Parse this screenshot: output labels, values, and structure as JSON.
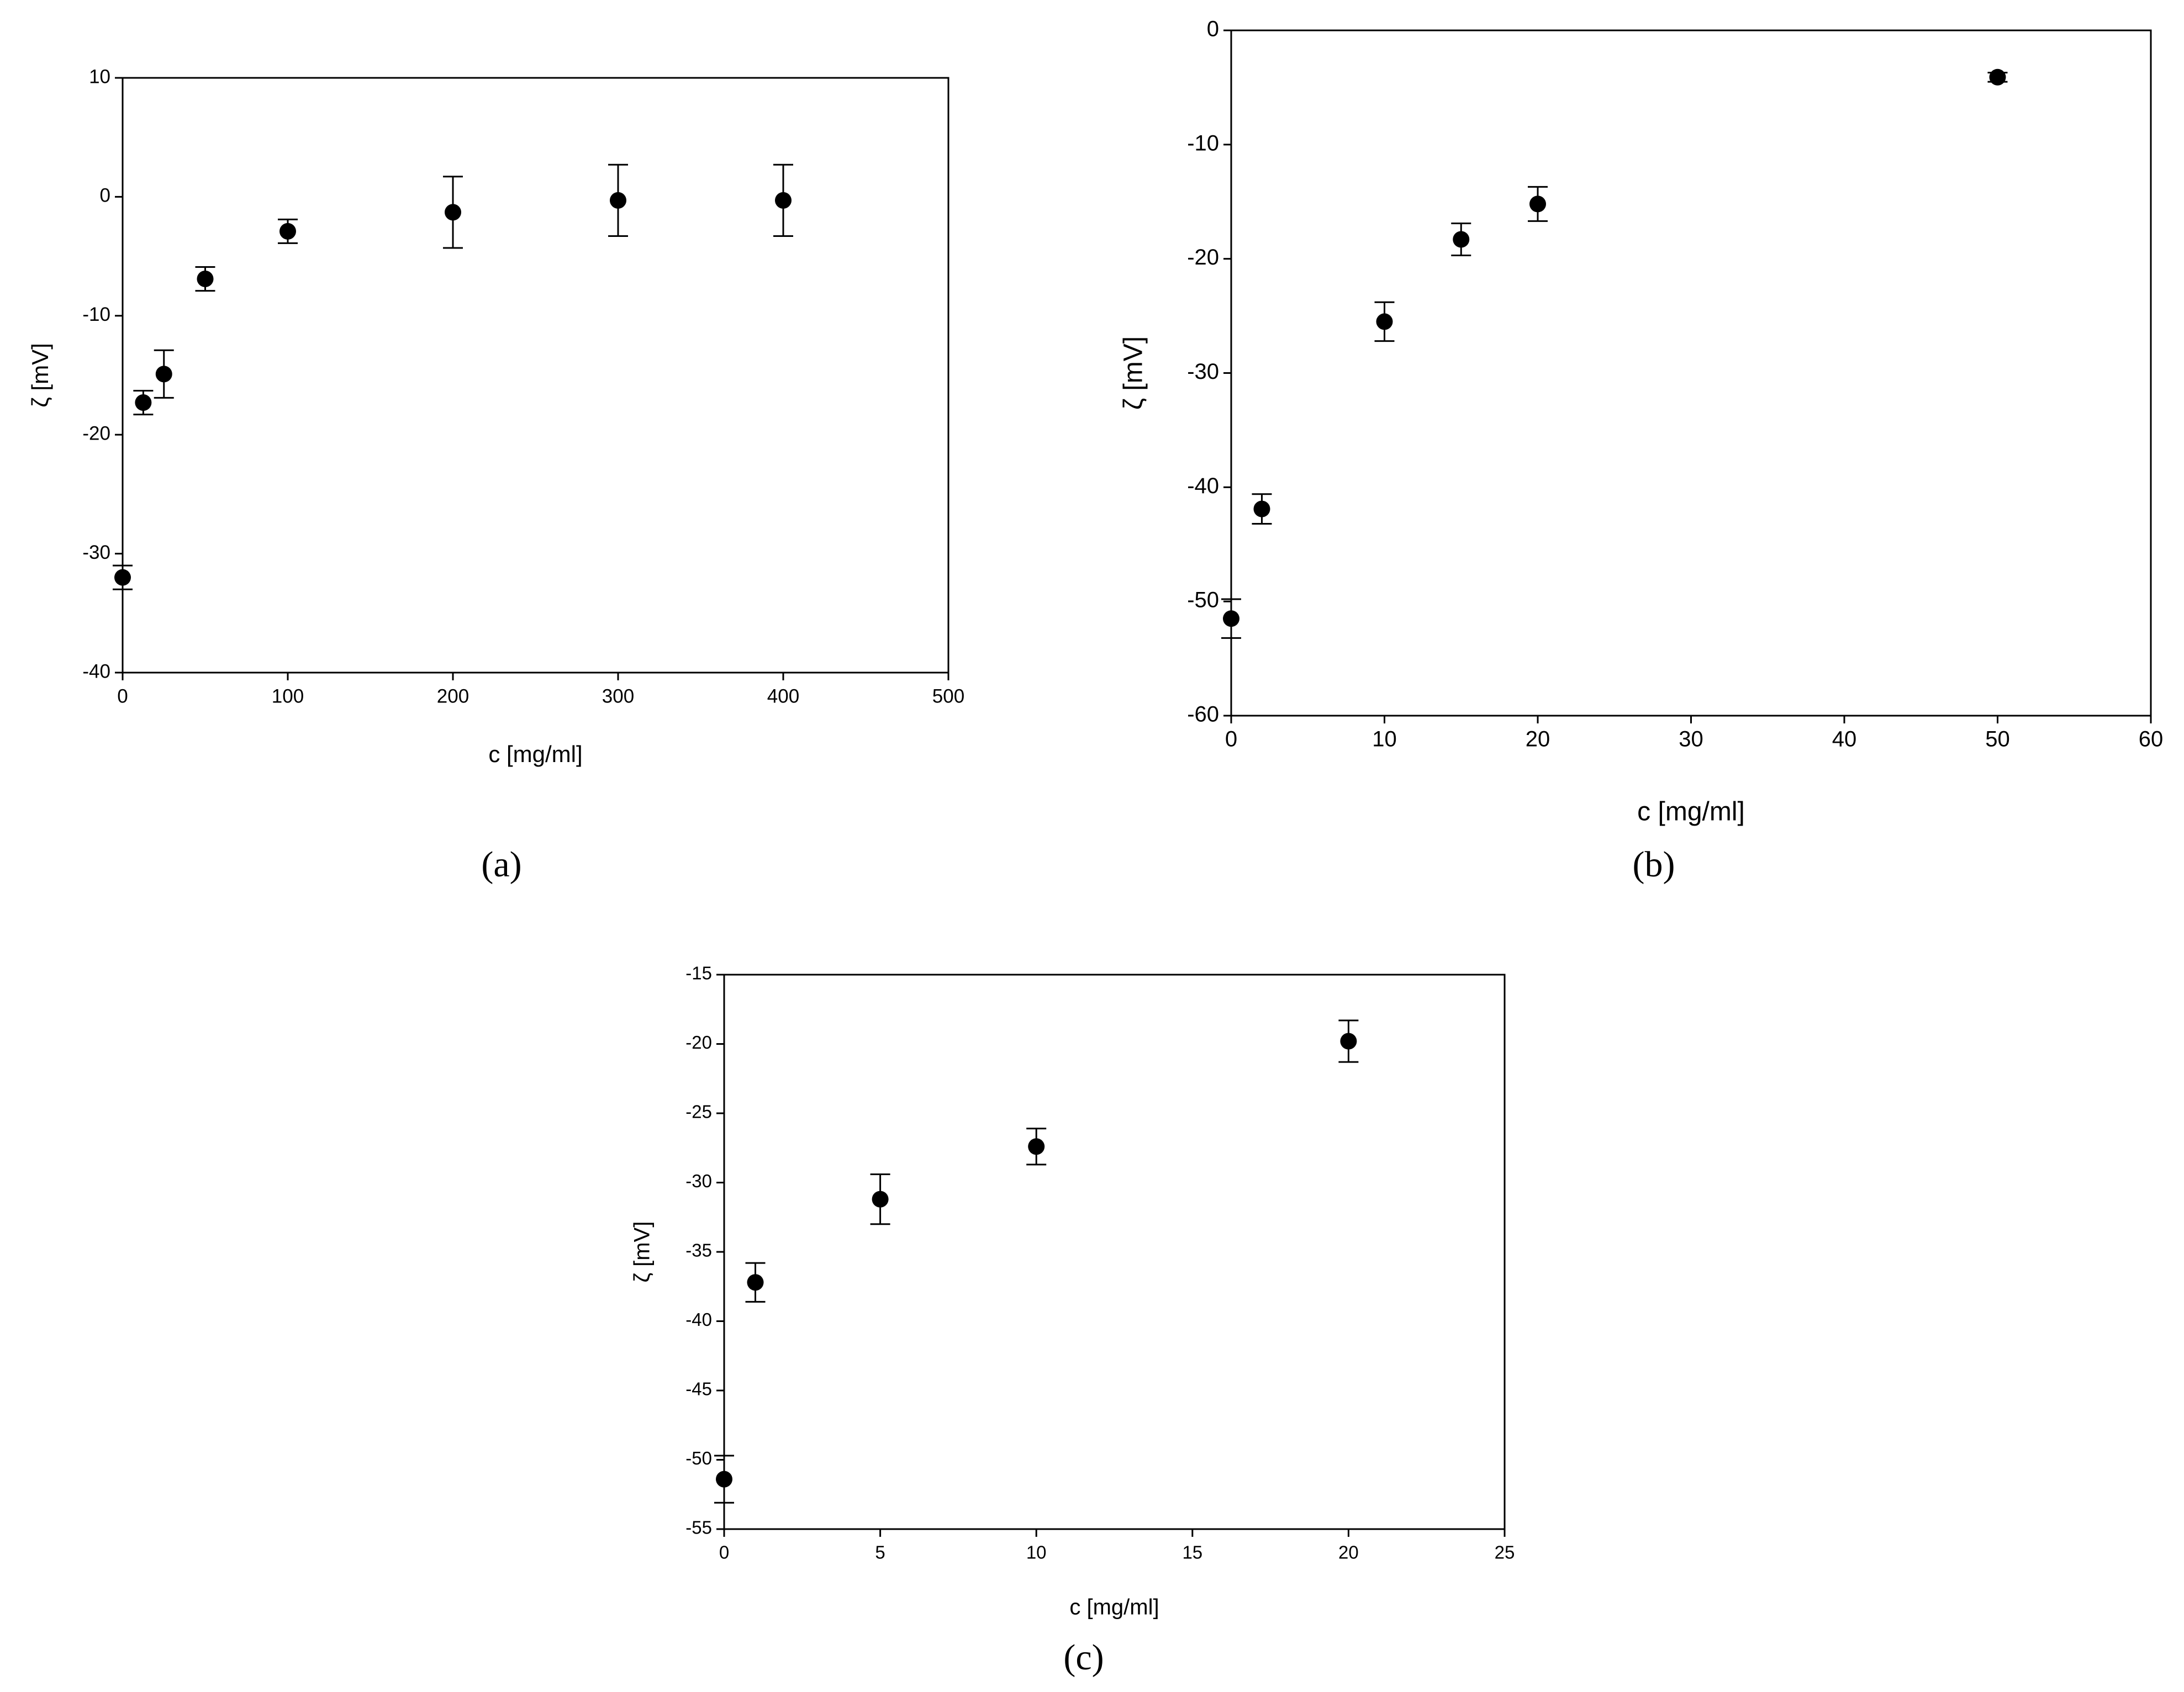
{
  "chart_data": [
    {
      "type": "scatter",
      "label": "(a)",
      "xlabel": "c [mg/ml]",
      "ylabel": "ζ [mV]",
      "x": [
        0,
        12.5,
        25,
        50,
        100,
        200,
        300,
        400
      ],
      "values": [
        -32,
        -17.3,
        -14.9,
        -6.9,
        -2.9,
        -1.3,
        -0.3,
        -0.3
      ],
      "errors": [
        1,
        1,
        2,
        1,
        1,
        3,
        3,
        3
      ],
      "color": "#000000",
      "xlim": [
        0,
        500
      ],
      "xticks": [
        0,
        100,
        200,
        300,
        400,
        500
      ],
      "ylim": [
        -40,
        10
      ],
      "yticks": [
        -40,
        -30,
        -20,
        -10,
        0,
        10
      ]
    },
    {
      "type": "scatter",
      "label": "(b)",
      "xlabel": "c [mg/ml]",
      "ylabel": "ζ [mV]",
      "x": [
        0,
        2,
        10,
        15,
        20,
        50
      ],
      "values": [
        -51.5,
        -41.9,
        -25.5,
        -18.3,
        -15.2,
        -4.1
      ],
      "errors": [
        1.7,
        1.3,
        1.7,
        1.4,
        1.5,
        0.4
      ],
      "color": "#000000",
      "xlim": [
        0,
        60
      ],
      "xticks": [
        0,
        10,
        20,
        30,
        40,
        50,
        60
      ],
      "ylim": [
        -60,
        0
      ],
      "yticks": [
        -60,
        -50,
        -40,
        -30,
        -20,
        -10,
        0
      ]
    },
    {
      "type": "scatter",
      "label": "(c)",
      "xlabel": "c [mg/ml]",
      "ylabel": "ζ [mV]",
      "x": [
        0,
        1,
        5,
        10,
        20
      ],
      "values": [
        -51.4,
        -37.2,
        -31.2,
        -27.4,
        -19.8
      ],
      "errors": [
        1.7,
        1.4,
        1.8,
        1.3,
        1.5
      ],
      "color": "#000000",
      "xlim": [
        0,
        25
      ],
      "xticks": [
        0,
        5,
        10,
        15,
        20,
        25
      ],
      "ylim": [
        -55,
        -15
      ],
      "yticks": [
        -55,
        -50,
        -45,
        -40,
        -35,
        -30,
        -25,
        -20,
        -15
      ]
    }
  ]
}
